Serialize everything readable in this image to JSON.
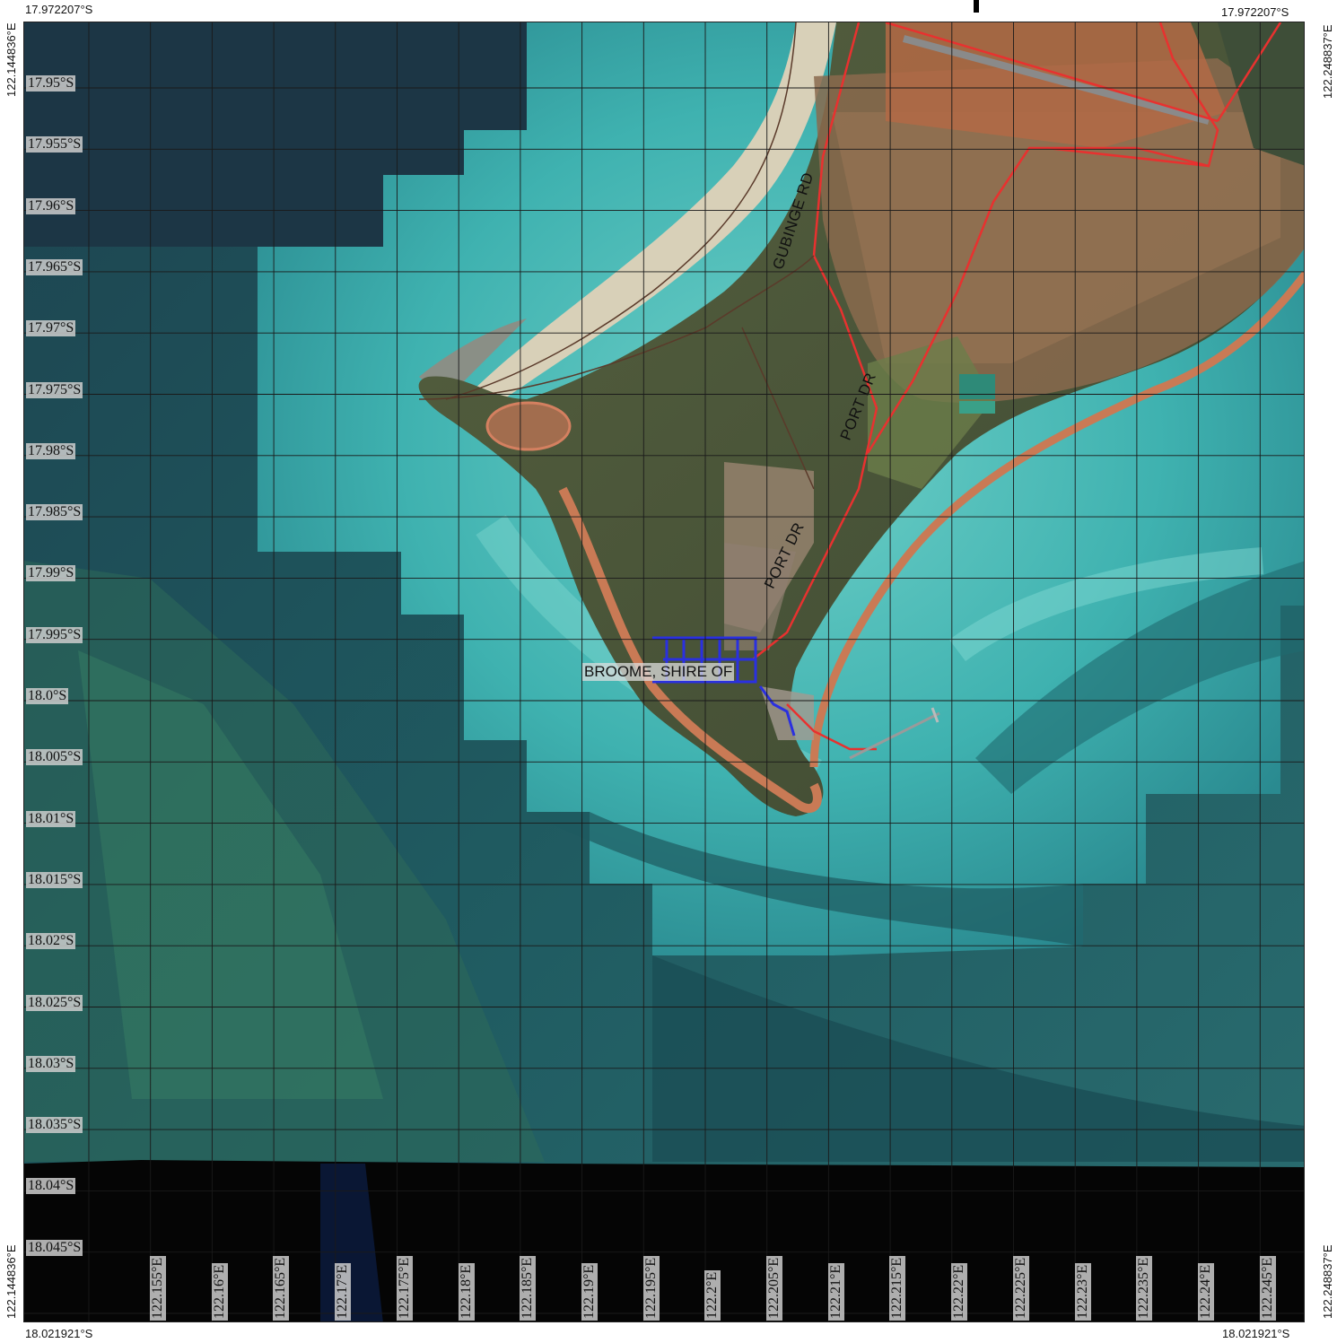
{
  "corners": {
    "top_left_lat": "17.972207°S",
    "top_right_lat": "17.972207°S",
    "bottom_left_lat": "18.021921°S",
    "bottom_right_lat": "18.021921°S",
    "left_top_lon": "122.144836°E",
    "left_bottom_lon": "122.144836°E",
    "right_top_lon": "122.248837°E",
    "right_bottom_lon": "122.248837°E"
  },
  "lat_labels": [
    "17.95°S",
    "17.955°S",
    "17.96°S",
    "17.965°S",
    "17.97°S",
    "17.975°S",
    "17.98°S",
    "17.985°S",
    "17.99°S",
    "17.995°S",
    "18.0°S",
    "18.005°S",
    "18.01°S",
    "18.015°S",
    "18.02°S",
    "18.025°S",
    "18.03°S",
    "18.035°S",
    "18.04°S",
    "18.045°S"
  ],
  "lon_labels": [
    "122.155°E",
    "122.16°E",
    "122.165°E",
    "122.17°E",
    "122.175°E",
    "122.18°E",
    "122.185°E",
    "122.19°E",
    "122.195°E",
    "122.2°E",
    "122.205°E",
    "122.21°E",
    "122.215°E",
    "122.22°E",
    "122.225°E",
    "122.23°E",
    "122.235°E",
    "122.24°E",
    "122.245°E"
  ],
  "roads": {
    "gubinge": "GUBINGE RD",
    "port_dr_1": "PORT DR",
    "port_dr_2": "PORT DR"
  },
  "place": "BROOME, SHIRE OF",
  "colors": {
    "deep_sea": "#173a47",
    "shallow": "#3fb3b2",
    "land": "#4d5a3d",
    "road": "#e8312f",
    "parcel": "#2a30e0",
    "beach": "#d8d0b8"
  }
}
